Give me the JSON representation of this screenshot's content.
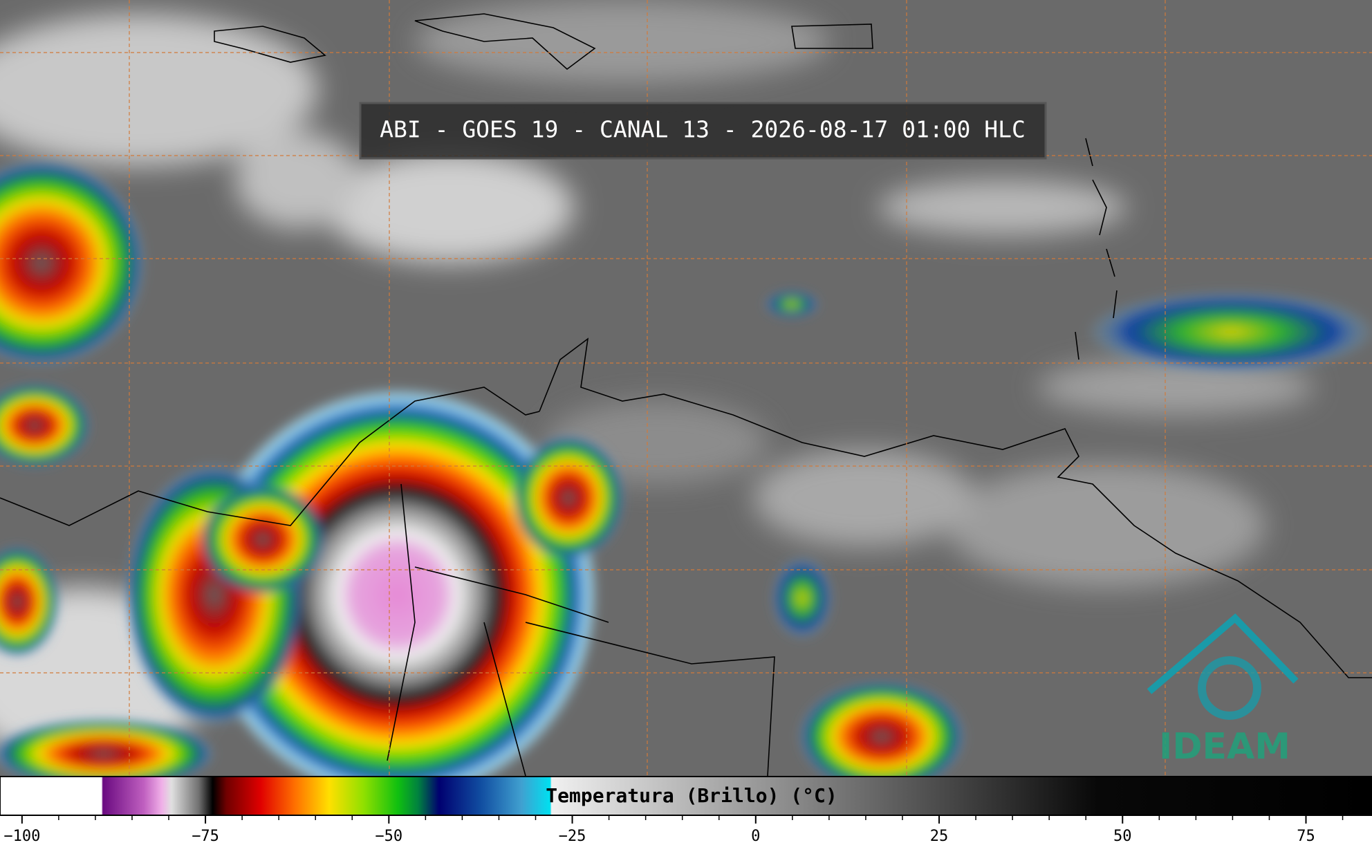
{
  "title": "ABI - GOES 19 - CANAL 13 - 2026-08-17 01:00 HLC",
  "logo": {
    "text": "IDEAM"
  },
  "colorbar": {
    "label": "Temperatura (Brillo) (°C)",
    "range": [
      -103,
      84
    ],
    "ticks": [
      {
        "value": -100,
        "label": "−100"
      },
      {
        "value": -75,
        "label": "−75"
      },
      {
        "value": -50,
        "label": "−50"
      },
      {
        "value": -25,
        "label": "−25"
      },
      0,
      25,
      50,
      75
    ],
    "minor_ticks": [
      -100,
      -95,
      -90,
      -85,
      -80,
      -75,
      -70,
      -65,
      -60,
      -55,
      -50,
      -45,
      -40,
      -35,
      -30,
      -25,
      -20,
      -15,
      -10,
      -5,
      0,
      5,
      10,
      15,
      20,
      25,
      30,
      35,
      40,
      45,
      50,
      55,
      60,
      65,
      70,
      75,
      80
    ]
  }
}
